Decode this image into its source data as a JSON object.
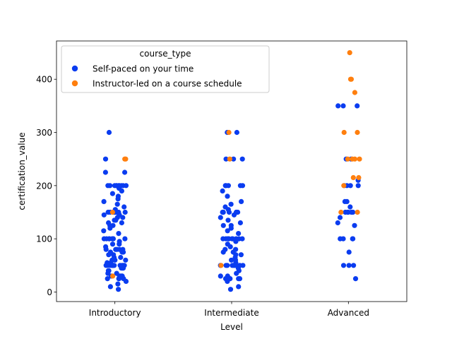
{
  "chart_data": {
    "type": "scatter",
    "subtype": "strip",
    "title": "",
    "xlabel": "Level",
    "ylabel": "certification_value",
    "categories": [
      "Introductory",
      "Intermediate",
      "Advanced"
    ],
    "ylim": [
      -18,
      472
    ],
    "yticks": [
      0,
      100,
      200,
      300,
      400
    ],
    "grid": false,
    "legend": {
      "title": "course_type",
      "placement": "top-left",
      "entries": [
        "Self-paced on your time",
        "Instructor-led on a course schedule"
      ]
    },
    "series": [
      {
        "name": "Self-paced on your time",
        "color": "#0a3cf0",
        "values": [
          [
            5,
            10,
            15,
            20,
            25,
            25,
            25,
            25,
            30,
            30,
            30,
            30,
            30,
            35,
            35,
            40,
            40,
            45,
            45,
            45,
            50,
            50,
            50,
            50,
            50,
            50,
            50,
            50,
            50,
            50,
            50,
            50,
            55,
            55,
            60,
            60,
            60,
            65,
            65,
            70,
            70,
            75,
            75,
            75,
            80,
            80,
            80,
            80,
            80,
            85,
            90,
            90,
            95,
            100,
            100,
            100,
            100,
            100,
            100,
            100,
            100,
            100,
            110,
            115,
            120,
            125,
            125,
            130,
            130,
            135,
            135,
            140,
            140,
            145,
            145,
            150,
            150,
            150,
            150,
            150,
            150,
            150,
            150,
            155,
            160,
            165,
            170,
            175,
            180,
            185,
            190,
            195,
            200,
            200,
            200,
            200,
            200,
            200,
            200,
            200,
            200,
            200,
            225,
            225,
            250,
            300
          ],
          [
            5,
            10,
            20,
            25,
            25,
            25,
            25,
            25,
            30,
            30,
            35,
            40,
            45,
            50,
            50,
            50,
            50,
            50,
            50,
            50,
            50,
            55,
            60,
            60,
            65,
            70,
            70,
            75,
            75,
            80,
            80,
            85,
            90,
            95,
            100,
            100,
            100,
            100,
            100,
            100,
            100,
            100,
            100,
            100,
            110,
            115,
            120,
            125,
            125,
            130,
            135,
            140,
            145,
            150,
            150,
            150,
            150,
            150,
            150,
            150,
            150,
            155,
            160,
            165,
            170,
            180,
            190,
            200,
            200,
            200,
            200,
            200,
            250,
            250,
            250,
            300,
            300
          ],
          [
            25,
            50,
            50,
            50,
            75,
            100,
            100,
            100,
            100,
            125,
            130,
            140,
            150,
            150,
            150,
            150,
            150,
            160,
            170,
            170,
            200,
            200,
            200,
            200,
            210,
            250,
            250,
            350,
            350,
            350
          ]
        ]
      },
      {
        "name": "Instructor-led on a course schedule",
        "color": "#ff7f0e",
        "values": [
          [
            30,
            150,
            250,
            250
          ],
          [
            50,
            250,
            300
          ],
          [
            150,
            150,
            200,
            215,
            215,
            250,
            250,
            250,
            250,
            300,
            300,
            375,
            400,
            400,
            450
          ]
        ]
      }
    ]
  }
}
